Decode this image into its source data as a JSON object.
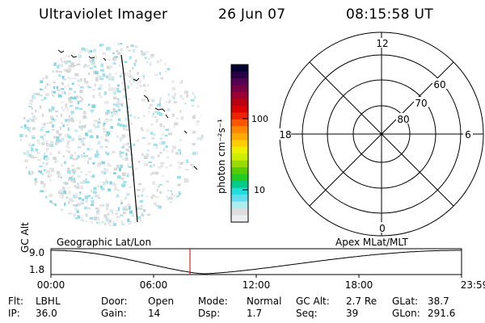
{
  "header": {
    "instrument": "Ultraviolet Imager",
    "date": "26 Jun 07",
    "time": "08:15:58 UT"
  },
  "colorbar": {
    "unit_label": "photon cm⁻²s⁻¹",
    "ticks": [
      "100",
      "10"
    ],
    "colors": [
      "#000033",
      "#2a0044",
      "#550055",
      "#770044",
      "#990033",
      "#bb0011",
      "#dd0000",
      "#ee2200",
      "#ff5500",
      "#ff8800",
      "#ffaa00",
      "#ffcc00",
      "#eeee00",
      "#ccee00",
      "#99dd00",
      "#55cc00",
      "#22cc22",
      "#00cc88",
      "#22dddd",
      "#66ddee",
      "#aaeef2",
      "#dddddd",
      "#eeeeee"
    ]
  },
  "polar": {
    "mlt_labels": {
      "top": "12",
      "left": "18",
      "right": "6",
      "bottom": "0"
    },
    "lat_labels": [
      "60",
      "70",
      "80"
    ]
  },
  "timeline": {
    "left_label": "Geographic Lat/Lon",
    "right_label": "Apex  MLat/MLT",
    "axis_label": "GC Alt",
    "ymax": "9.0",
    "ymin": "1.8",
    "xticks": [
      "00:00",
      "06:00",
      "12:00",
      "18:00",
      "23:59"
    ]
  },
  "info": {
    "row1": [
      {
        "k": "Flt:",
        "v": "LBHL"
      },
      {
        "k": "Door:",
        "v": "Open"
      },
      {
        "k": "Mode:",
        "v": "Normal"
      },
      {
        "k": "GC Alt:",
        "v": "2.7 Re"
      },
      {
        "k": "GLat:",
        "v": "38.7"
      }
    ],
    "row2": [
      {
        "k": "IP:",
        "v": "36.0"
      },
      {
        "k": "Gain:",
        "v": "14"
      },
      {
        "k": "Dsp:",
        "v": "1.7"
      },
      {
        "k": "Seq:",
        "v": "39"
      },
      {
        "k": "GLon:",
        "v": "291.6"
      }
    ]
  }
}
